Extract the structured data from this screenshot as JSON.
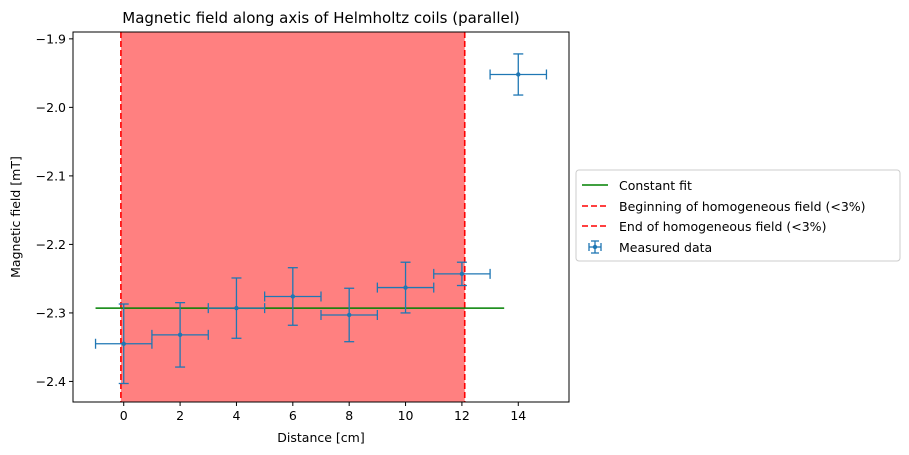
{
  "chart_data": {
    "type": "scatter",
    "title": "Magnetic field along axis of Helmholtz coils (parallel)",
    "xlabel": "Distance [cm]",
    "ylabel": "Magnetic field [mT]",
    "xlim": [
      -1.8,
      15.8
    ],
    "ylim": [
      -2.43,
      -1.89
    ],
    "xticks": [
      0,
      2,
      4,
      6,
      8,
      10,
      12,
      14
    ],
    "xtick_labels": [
      "0",
      "2",
      "4",
      "6",
      "8",
      "10",
      "12",
      "14"
    ],
    "yticks": [
      -2.4,
      -2.3,
      -2.2,
      -2.1,
      -2.0,
      -1.9
    ],
    "ytick_labels": [
      "−2.4",
      "−2.3",
      "−2.2",
      "−2.1",
      "−2.0",
      "−1.9"
    ],
    "grid": false,
    "legend_position": "center-left outside right",
    "colors": {
      "measured": "#1f77b4",
      "fit": "#008000",
      "boundary": "#ff0000",
      "region": "#ff8080"
    },
    "homogeneous_region": {
      "start": -0.1,
      "end": 12.1
    },
    "series": [
      {
        "name": "Constant fit",
        "type": "line",
        "x": [
          -1,
          13.5
        ],
        "y": [
          -2.293,
          -2.293
        ]
      },
      {
        "name": "Beginning of homogeneous field (<3%)",
        "type": "vline",
        "x": -0.1
      },
      {
        "name": "End of homogeneous field (<3%)",
        "type": "vline",
        "x": 12.1
      },
      {
        "name": "Measured data",
        "type": "errorbar",
        "points": [
          {
            "x": 0,
            "y": -2.345,
            "xerr": 1,
            "yerr": 0.058
          },
          {
            "x": 2,
            "y": -2.332,
            "xerr": 1,
            "yerr": 0.047
          },
          {
            "x": 4,
            "y": -2.293,
            "xerr": 1,
            "yerr": 0.044
          },
          {
            "x": 6,
            "y": -2.276,
            "xerr": 1,
            "yerr": 0.042
          },
          {
            "x": 8,
            "y": -2.303,
            "xerr": 1,
            "yerr": 0.039
          },
          {
            "x": 10,
            "y": -2.263,
            "xerr": 1,
            "yerr": 0.037
          },
          {
            "x": 12,
            "y": -2.243,
            "xerr": 1,
            "yerr": 0.017
          },
          {
            "x": 14,
            "y": -1.952,
            "xerr": 1,
            "yerr": 0.03
          }
        ]
      }
    ]
  }
}
